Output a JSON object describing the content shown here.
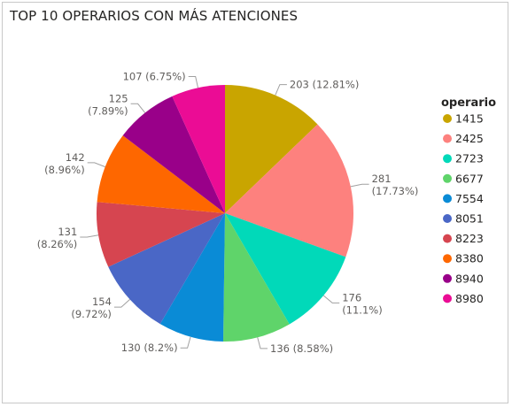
{
  "chart_data": {
    "type": "pie",
    "title": "TOP 10 OPERARIOS CON MÁS ATENCIONES",
    "legend_title": "operario",
    "legend_position": "right",
    "slices": [
      {
        "name": "1415",
        "value": 203,
        "pct_label": "(12.81%)",
        "color": "#C9A500"
      },
      {
        "name": "2425",
        "value": 281,
        "pct_label": "(17.73%)",
        "color": "#FD817E"
      },
      {
        "name": "2723",
        "value": 176,
        "pct_label": "(11.1%)",
        "color": "#01D9B9"
      },
      {
        "name": "6677",
        "value": 136,
        "pct_label": "(8.58%)",
        "color": "#5FD46A"
      },
      {
        "name": "7554",
        "value": 130,
        "pct_label": "(8.2%)",
        "color": "#0A8BD6"
      },
      {
        "name": "8051",
        "value": 154,
        "pct_label": "(9.72%)",
        "color": "#4A67C6"
      },
      {
        "name": "8223",
        "value": 131,
        "pct_label": "(8.26%)",
        "color": "#D64550"
      },
      {
        "name": "8380",
        "value": 142,
        "pct_label": "(8.96%)",
        "color": "#FE6700"
      },
      {
        "name": "8940",
        "value": 125,
        "pct_label": "(7.89%)",
        "color": "#990089"
      },
      {
        "name": "8980",
        "value": 107,
        "pct_label": "(6.75%)",
        "color": "#EB0C95"
      }
    ]
  }
}
